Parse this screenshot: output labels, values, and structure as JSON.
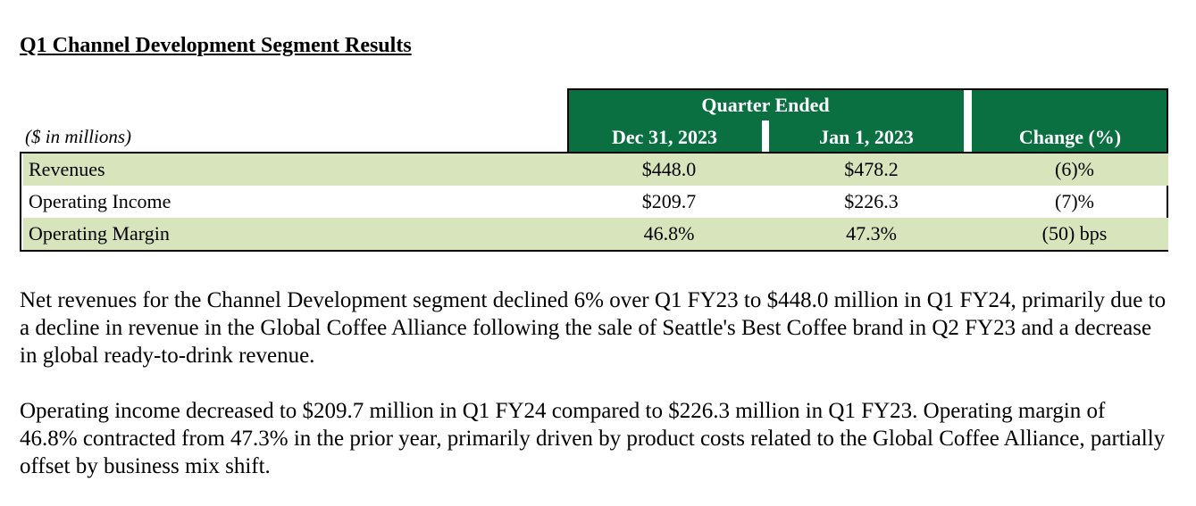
{
  "title": "Q1 Channel Development Segment Results",
  "table": {
    "units_label": "($ in millions)",
    "group_header": "Quarter Ended",
    "columns": [
      "Dec 31, 2023",
      "Jan 1, 2023",
      "Change (%)"
    ],
    "rows": [
      {
        "label": "Revenues",
        "values": [
          "$448.0",
          "$478.2",
          "(6)%"
        ]
      },
      {
        "label": "Operating Income",
        "values": [
          "$209.7",
          "$226.3",
          "(7)%"
        ]
      },
      {
        "label": "Operating Margin",
        "values": [
          "46.8%",
          "47.3%",
          "(50) bps"
        ]
      }
    ],
    "header_color": "#0b7041",
    "shade_color": "#d8e4bc"
  },
  "paragraphs": [
    "Net revenues for the Channel Development segment declined 6% over Q1 FY23 to $448.0 million in Q1 FY24, primarily due to a decline in revenue in the Global Coffee Alliance following the sale of Seattle's Best Coffee brand in Q2 FY23 and a decrease in global ready-to-drink revenue.",
    "Operating income decreased to $209.7 million in Q1 FY24 compared to $226.3 million in Q1 FY23. Operating margin of 46.8% contracted from 47.3% in the prior year, primarily driven by product costs related to the Global Coffee Alliance, partially offset by business mix shift."
  ]
}
